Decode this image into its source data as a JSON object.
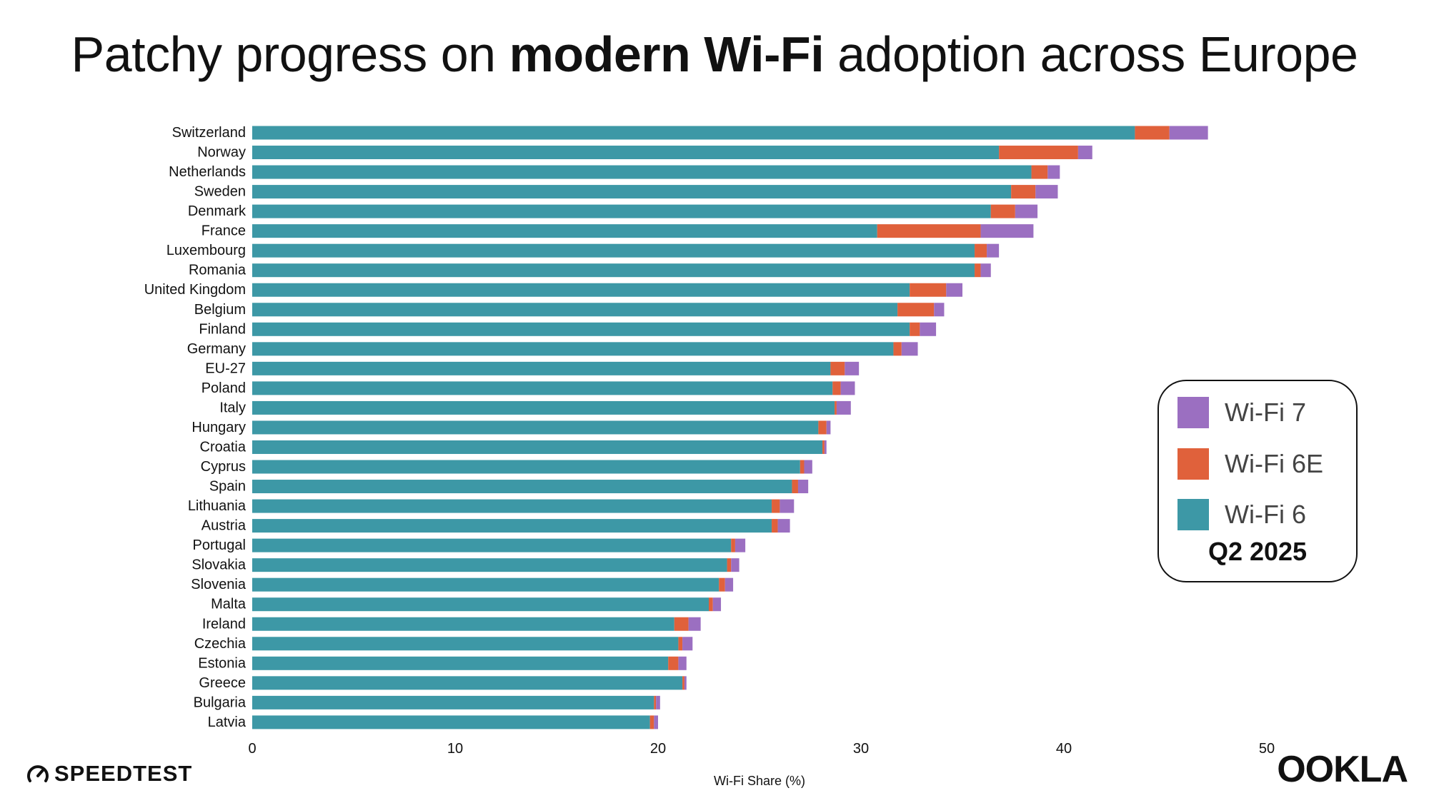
{
  "header": {
    "title_prefix": "Patchy progress on ",
    "title_bold": "modern Wi-Fi",
    "title_suffix": " adoption across Europe"
  },
  "legend": {
    "items": [
      {
        "label": "Wi-Fi 7",
        "color": "#9b6fc1"
      },
      {
        "label": "Wi-Fi 6E",
        "color": "#e0613b"
      },
      {
        "label": "Wi-Fi 6",
        "color": "#3d98a6"
      }
    ],
    "period": "Q2 2025"
  },
  "chart_data": {
    "type": "bar",
    "orientation": "horizontal",
    "stacked": true,
    "xlabel": "Wi-Fi Share (%)",
    "xlim": [
      0,
      50
    ],
    "xticks": [
      0,
      10,
      20,
      30,
      40,
      50
    ],
    "grid": false,
    "legend_position": "right",
    "categories": [
      "Switzerland",
      "Norway",
      "Netherlands",
      "Sweden",
      "Denmark",
      "France",
      "Luxembourg",
      "Romania",
      "United Kingdom",
      "Belgium",
      "Finland",
      "Germany",
      "EU-27",
      "Poland",
      "Italy",
      "Hungary",
      "Croatia",
      "Cyprus",
      "Spain",
      "Lithuania",
      "Austria",
      "Portugal",
      "Slovakia",
      "Slovenia",
      "Malta",
      "Ireland",
      "Czechia",
      "Estonia",
      "Greece",
      "Bulgaria",
      "Latvia"
    ],
    "series": [
      {
        "name": "Wi-Fi 6",
        "color": "#3d98a6",
        "values": [
          43.5,
          36.8,
          38.4,
          37.4,
          36.4,
          30.8,
          35.6,
          35.6,
          32.4,
          31.8,
          32.4,
          31.6,
          28.5,
          28.6,
          28.7,
          27.9,
          28.1,
          27.0,
          26.6,
          25.6,
          25.6,
          23.6,
          23.4,
          23.0,
          22.5,
          20.8,
          21.0,
          20.5,
          21.2,
          19.8,
          19.6
        ]
      },
      {
        "name": "Wi-Fi 6E",
        "color": "#e0613b",
        "values": [
          1.7,
          3.9,
          0.8,
          1.2,
          1.2,
          5.1,
          0.6,
          0.3,
          1.8,
          1.8,
          0.5,
          0.4,
          0.7,
          0.4,
          0.1,
          0.4,
          0.1,
          0.2,
          0.3,
          0.4,
          0.3,
          0.2,
          0.2,
          0.3,
          0.2,
          0.7,
          0.2,
          0.5,
          0.1,
          0.1,
          0.2
        ]
      },
      {
        "name": "Wi-Fi 7",
        "color": "#9b6fc1",
        "values": [
          1.9,
          0.7,
          0.6,
          1.1,
          1.1,
          2.6,
          0.6,
          0.5,
          0.8,
          0.5,
          0.8,
          0.8,
          0.7,
          0.7,
          0.7,
          0.2,
          0.1,
          0.4,
          0.5,
          0.7,
          0.6,
          0.5,
          0.4,
          0.4,
          0.4,
          0.6,
          0.5,
          0.4,
          0.1,
          0.2,
          0.2
        ]
      }
    ]
  },
  "branding": {
    "left_logo_text": "SPEEDTEST",
    "right_logo_text": "OOKLA"
  }
}
